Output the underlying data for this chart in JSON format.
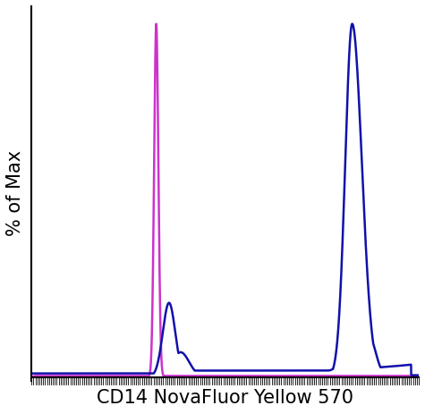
{
  "title": "",
  "xlabel": "CD14 NovaFluor Yellow 570",
  "ylabel": "% of Max",
  "xlabel_fontsize": 15,
  "ylabel_fontsize": 15,
  "background_color": "#ffffff",
  "plot_bg_color": "#ffffff",
  "magenta_color": "#CC33CC",
  "blue_color": "#1111AA",
  "xlim": [
    0,
    1000
  ],
  "ylim": [
    -0.01,
    1.05
  ],
  "line_width": 1.8
}
